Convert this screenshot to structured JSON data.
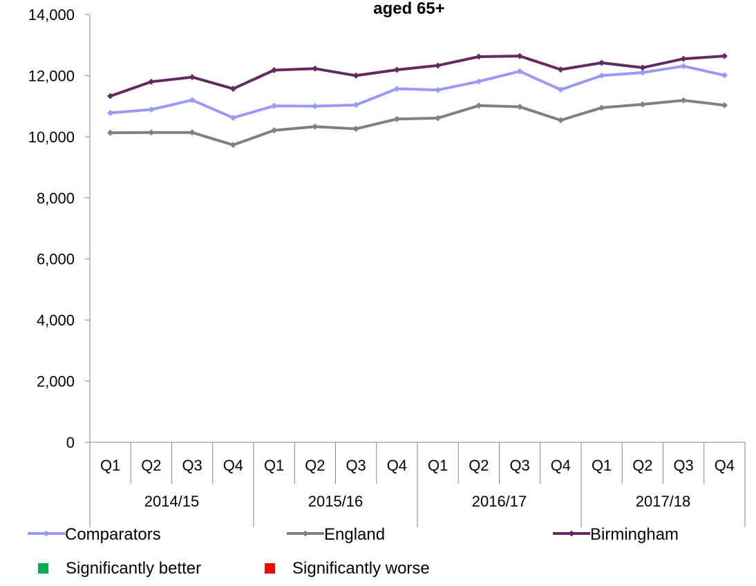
{
  "chart_data": {
    "type": "line",
    "title": "aged 65+",
    "xlabel": "",
    "ylabel": "",
    "ylim": [
      0,
      14000
    ],
    "yticks": [
      "0",
      "2,000",
      "4,000",
      "6,000",
      "8,000",
      "10,000",
      "12,000",
      "14,000"
    ],
    "yticks_values": [
      0,
      2000,
      4000,
      6000,
      8000,
      10000,
      12000,
      14000
    ],
    "grid": false,
    "quarters": [
      "Q1",
      "Q2",
      "Q3",
      "Q4",
      "Q1",
      "Q2",
      "Q3",
      "Q4",
      "Q1",
      "Q2",
      "Q3",
      "Q4",
      "Q1",
      "Q2",
      "Q3",
      "Q4"
    ],
    "years": [
      "2014/15",
      "2015/16",
      "2016/17",
      "2017/18"
    ],
    "series": [
      {
        "name": "Comparators",
        "color": "#9999ff",
        "values": [
          10780,
          10890,
          11200,
          10620,
          11010,
          11000,
          11040,
          11570,
          11530,
          11810,
          12140,
          11540,
          12000,
          12100,
          12310,
          12010
        ]
      },
      {
        "name": "England",
        "color": "#808080",
        "values": [
          10130,
          10140,
          10140,
          9730,
          10210,
          10330,
          10260,
          10580,
          10610,
          11020,
          10980,
          10540,
          10950,
          11060,
          11190,
          11030
        ]
      },
      {
        "name": "Birmingham",
        "color": "#632a60",
        "values": [
          11330,
          11800,
          11950,
          11570,
          12180,
          12230,
          12000,
          12190,
          12330,
          12620,
          12640,
          12200,
          12420,
          12260,
          12550,
          12640
        ]
      }
    ],
    "legend_position": "bottom",
    "significance_legend": [
      {
        "label": "Significantly better",
        "color": "#00b050"
      },
      {
        "label": "Significantly worse",
        "color": "#ff0000"
      }
    ]
  }
}
